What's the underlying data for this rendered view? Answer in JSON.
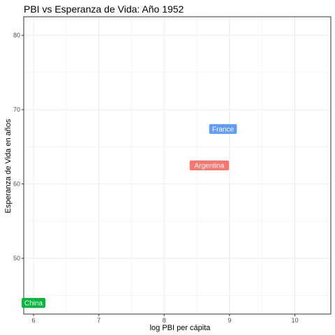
{
  "chart_data": {
    "type": "scatter",
    "title": "PBI vs Esperanza de Vida: Año 1952",
    "xlabel": "log PBI per cápita",
    "ylabel": "Esperanza de Vida en años",
    "xlim": [
      5.85,
      10.55
    ],
    "ylim": [
      42.5,
      82.5
    ],
    "x_ticks": [
      6,
      7,
      8,
      9,
      10
    ],
    "y_ticks": [
      50,
      60,
      70,
      80
    ],
    "grid": true,
    "legend": "none",
    "points": [
      {
        "label": "France",
        "x": 8.9,
        "y": 67.4,
        "color": "#619cff"
      },
      {
        "label": "Argentina",
        "x": 8.69,
        "y": 62.5,
        "color": "#f8766d"
      },
      {
        "label": "China",
        "x": 6.0,
        "y": 44.0,
        "color": "#00ba38"
      }
    ]
  }
}
